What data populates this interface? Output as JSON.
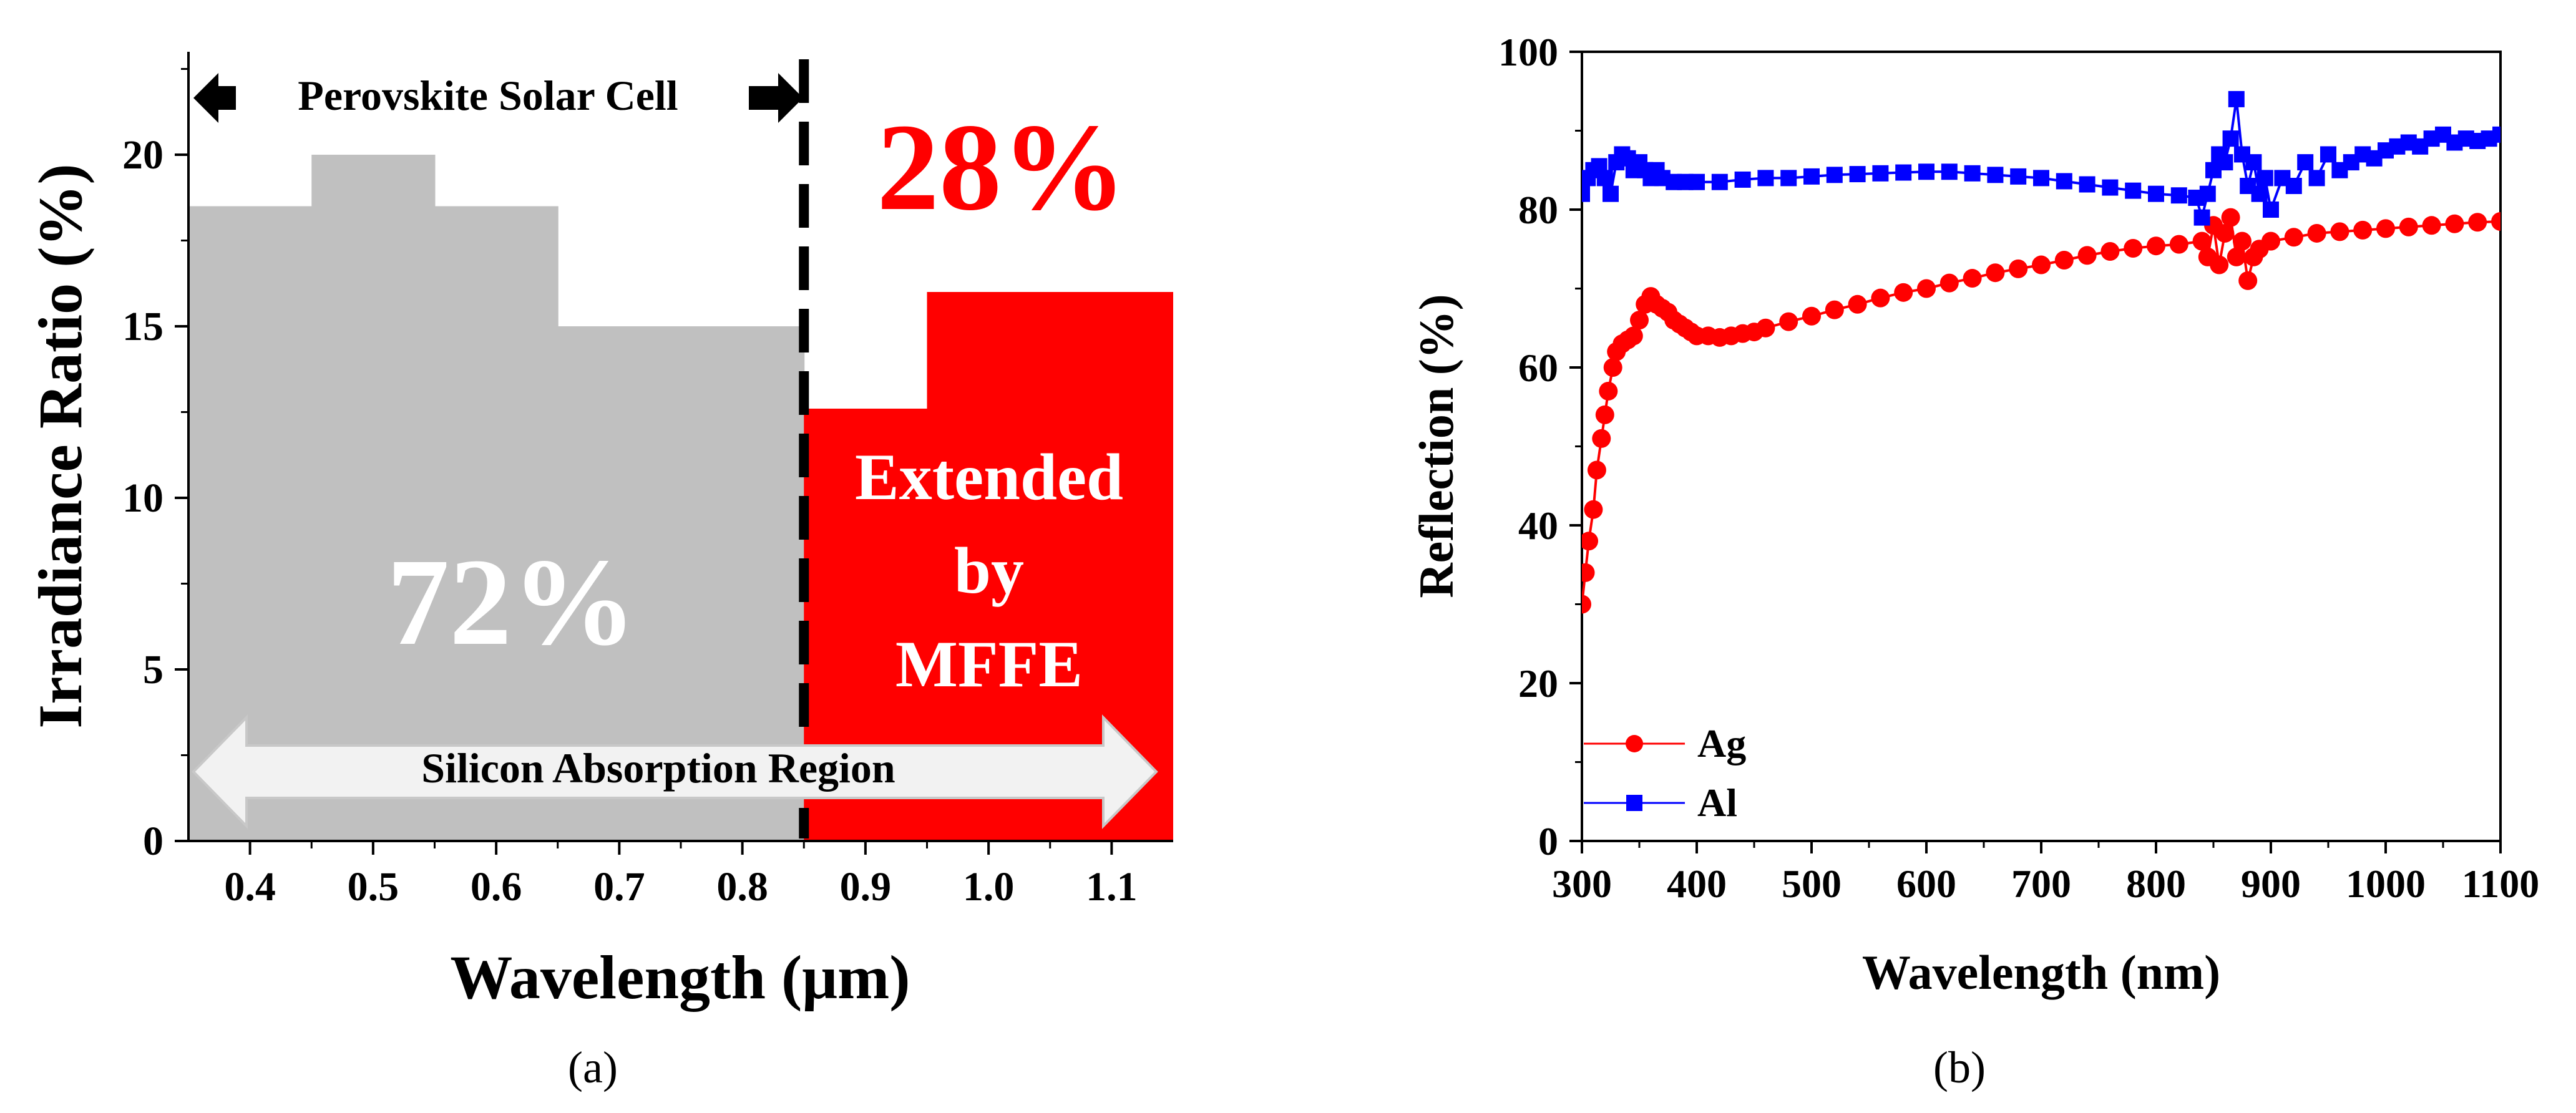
{
  "chart_data": [
    {
      "type": "bar",
      "panel_label": "(a)",
      "xlabel": "Wavelength (μm)",
      "ylabel": "Irradiance Ratio (%)",
      "xlim": [
        0.35,
        1.15
      ],
      "ylim": [
        0,
        23
      ],
      "xticks": [
        "0.4",
        "0.5",
        "0.6",
        "0.7",
        "0.8",
        "0.9",
        "1.0",
        "1.1"
      ],
      "yticks": [
        "0",
        "5",
        "10",
        "15",
        "20"
      ],
      "bars": [
        {
          "x0": 0.35,
          "x1": 0.45,
          "value": 18.5,
          "group": "perovskite"
        },
        {
          "x0": 0.45,
          "x1": 0.55,
          "value": 20.0,
          "group": "perovskite"
        },
        {
          "x0": 0.55,
          "x1": 0.65,
          "value": 18.5,
          "group": "perovskite"
        },
        {
          "x0": 0.65,
          "x1": 0.85,
          "value": 15.0,
          "group": "perovskite"
        },
        {
          "x0": 0.85,
          "x1": 0.95,
          "value": 12.6,
          "group": "extended"
        },
        {
          "x0": 0.95,
          "x1": 1.15,
          "value": 16.0,
          "group": "extended"
        }
      ],
      "divider_x": 0.85,
      "annotations": {
        "perovskite": "Perovskite Solar Cell",
        "silicon": "Silicon Absorption Region",
        "pct_perovskite": "72%",
        "pct_extended": "28%",
        "extended_line1": "Extended",
        "extended_line2": "by",
        "extended_line3": "MFFE"
      },
      "colors": {
        "perovskite": "#c0c0c0",
        "extended": "#ff0000",
        "pct_extended": "#ff0000"
      }
    },
    {
      "type": "scatter",
      "panel_label": "(b)",
      "xlabel": "Wavelength (nm)",
      "ylabel": "Reflection (%)",
      "xlim": [
        300,
        1100
      ],
      "ylim": [
        0,
        100
      ],
      "xticks": [
        "300",
        "400",
        "500",
        "600",
        "700",
        "800",
        "900",
        "1000",
        "1100"
      ],
      "yticks": [
        "0",
        "20",
        "40",
        "60",
        "80",
        "100"
      ],
      "legend_position": "bottom-left",
      "series": [
        {
          "name": "Ag",
          "marker": "circle",
          "color": "#ff0000",
          "x": [
            300,
            303,
            306,
            310,
            313,
            317,
            320,
            323,
            327,
            330,
            335,
            340,
            345,
            350,
            355,
            360,
            365,
            370,
            375,
            380,
            385,
            390,
            395,
            400,
            410,
            420,
            430,
            440,
            450,
            460,
            480,
            500,
            520,
            540,
            560,
            580,
            600,
            620,
            640,
            660,
            680,
            700,
            720,
            740,
            760,
            780,
            800,
            820,
            840,
            845,
            850,
            855,
            860,
            865,
            870,
            875,
            880,
            885,
            890,
            900,
            920,
            940,
            960,
            980,
            1000,
            1020,
            1040,
            1060,
            1080,
            1100
          ],
          "y": [
            30,
            34,
            38,
            42,
            47,
            51,
            54,
            57,
            60,
            62,
            63,
            63.5,
            64,
            66,
            68,
            69,
            68,
            67.5,
            67,
            66,
            65.5,
            65,
            64.5,
            64,
            64,
            63.8,
            64,
            64.3,
            64.5,
            65,
            65.8,
            66.5,
            67.3,
            68,
            68.8,
            69.5,
            70,
            70.7,
            71.3,
            72,
            72.5,
            73,
            73.6,
            74.2,
            74.7,
            75.1,
            75.4,
            75.6,
            76,
            74,
            78,
            73,
            77,
            79,
            74,
            76,
            71,
            74,
            75,
            76,
            76.5,
            77,
            77.2,
            77.4,
            77.6,
            77.8,
            78,
            78.2,
            78.4,
            78.5
          ]
        },
        {
          "name": "Al",
          "marker": "square",
          "color": "#0000ff",
          "x": [
            300,
            305,
            310,
            315,
            320,
            325,
            330,
            335,
            340,
            345,
            350,
            355,
            360,
            365,
            370,
            380,
            390,
            400,
            420,
            440,
            460,
            480,
            500,
            520,
            540,
            560,
            580,
            600,
            620,
            640,
            660,
            680,
            700,
            720,
            740,
            760,
            780,
            800,
            820,
            835,
            840,
            845,
            850,
            855,
            860,
            865,
            870,
            875,
            880,
            885,
            890,
            895,
            900,
            910,
            920,
            930,
            940,
            950,
            960,
            970,
            980,
            990,
            1000,
            1010,
            1020,
            1030,
            1040,
            1050,
            1060,
            1070,
            1080,
            1090,
            1100
          ],
          "y": [
            82,
            84,
            85,
            85.5,
            84,
            82,
            86,
            87,
            86.5,
            85,
            86,
            85,
            84,
            85,
            84,
            83.5,
            83.5,
            83.5,
            83.5,
            83.8,
            84,
            84,
            84.2,
            84.4,
            84.5,
            84.6,
            84.7,
            84.8,
            84.8,
            84.6,
            84.4,
            84.2,
            84,
            83.6,
            83.2,
            82.8,
            82.4,
            82,
            81.8,
            81.5,
            79,
            82,
            85,
            87,
            86,
            89,
            94,
            87,
            83,
            86,
            82,
            84,
            80,
            84,
            83,
            86,
            84,
            87,
            85,
            86,
            87,
            86.5,
            87.5,
            88,
            88.5,
            88,
            89,
            89.5,
            88.5,
            89,
            88.7,
            89,
            89.5
          ]
        }
      ]
    }
  ]
}
